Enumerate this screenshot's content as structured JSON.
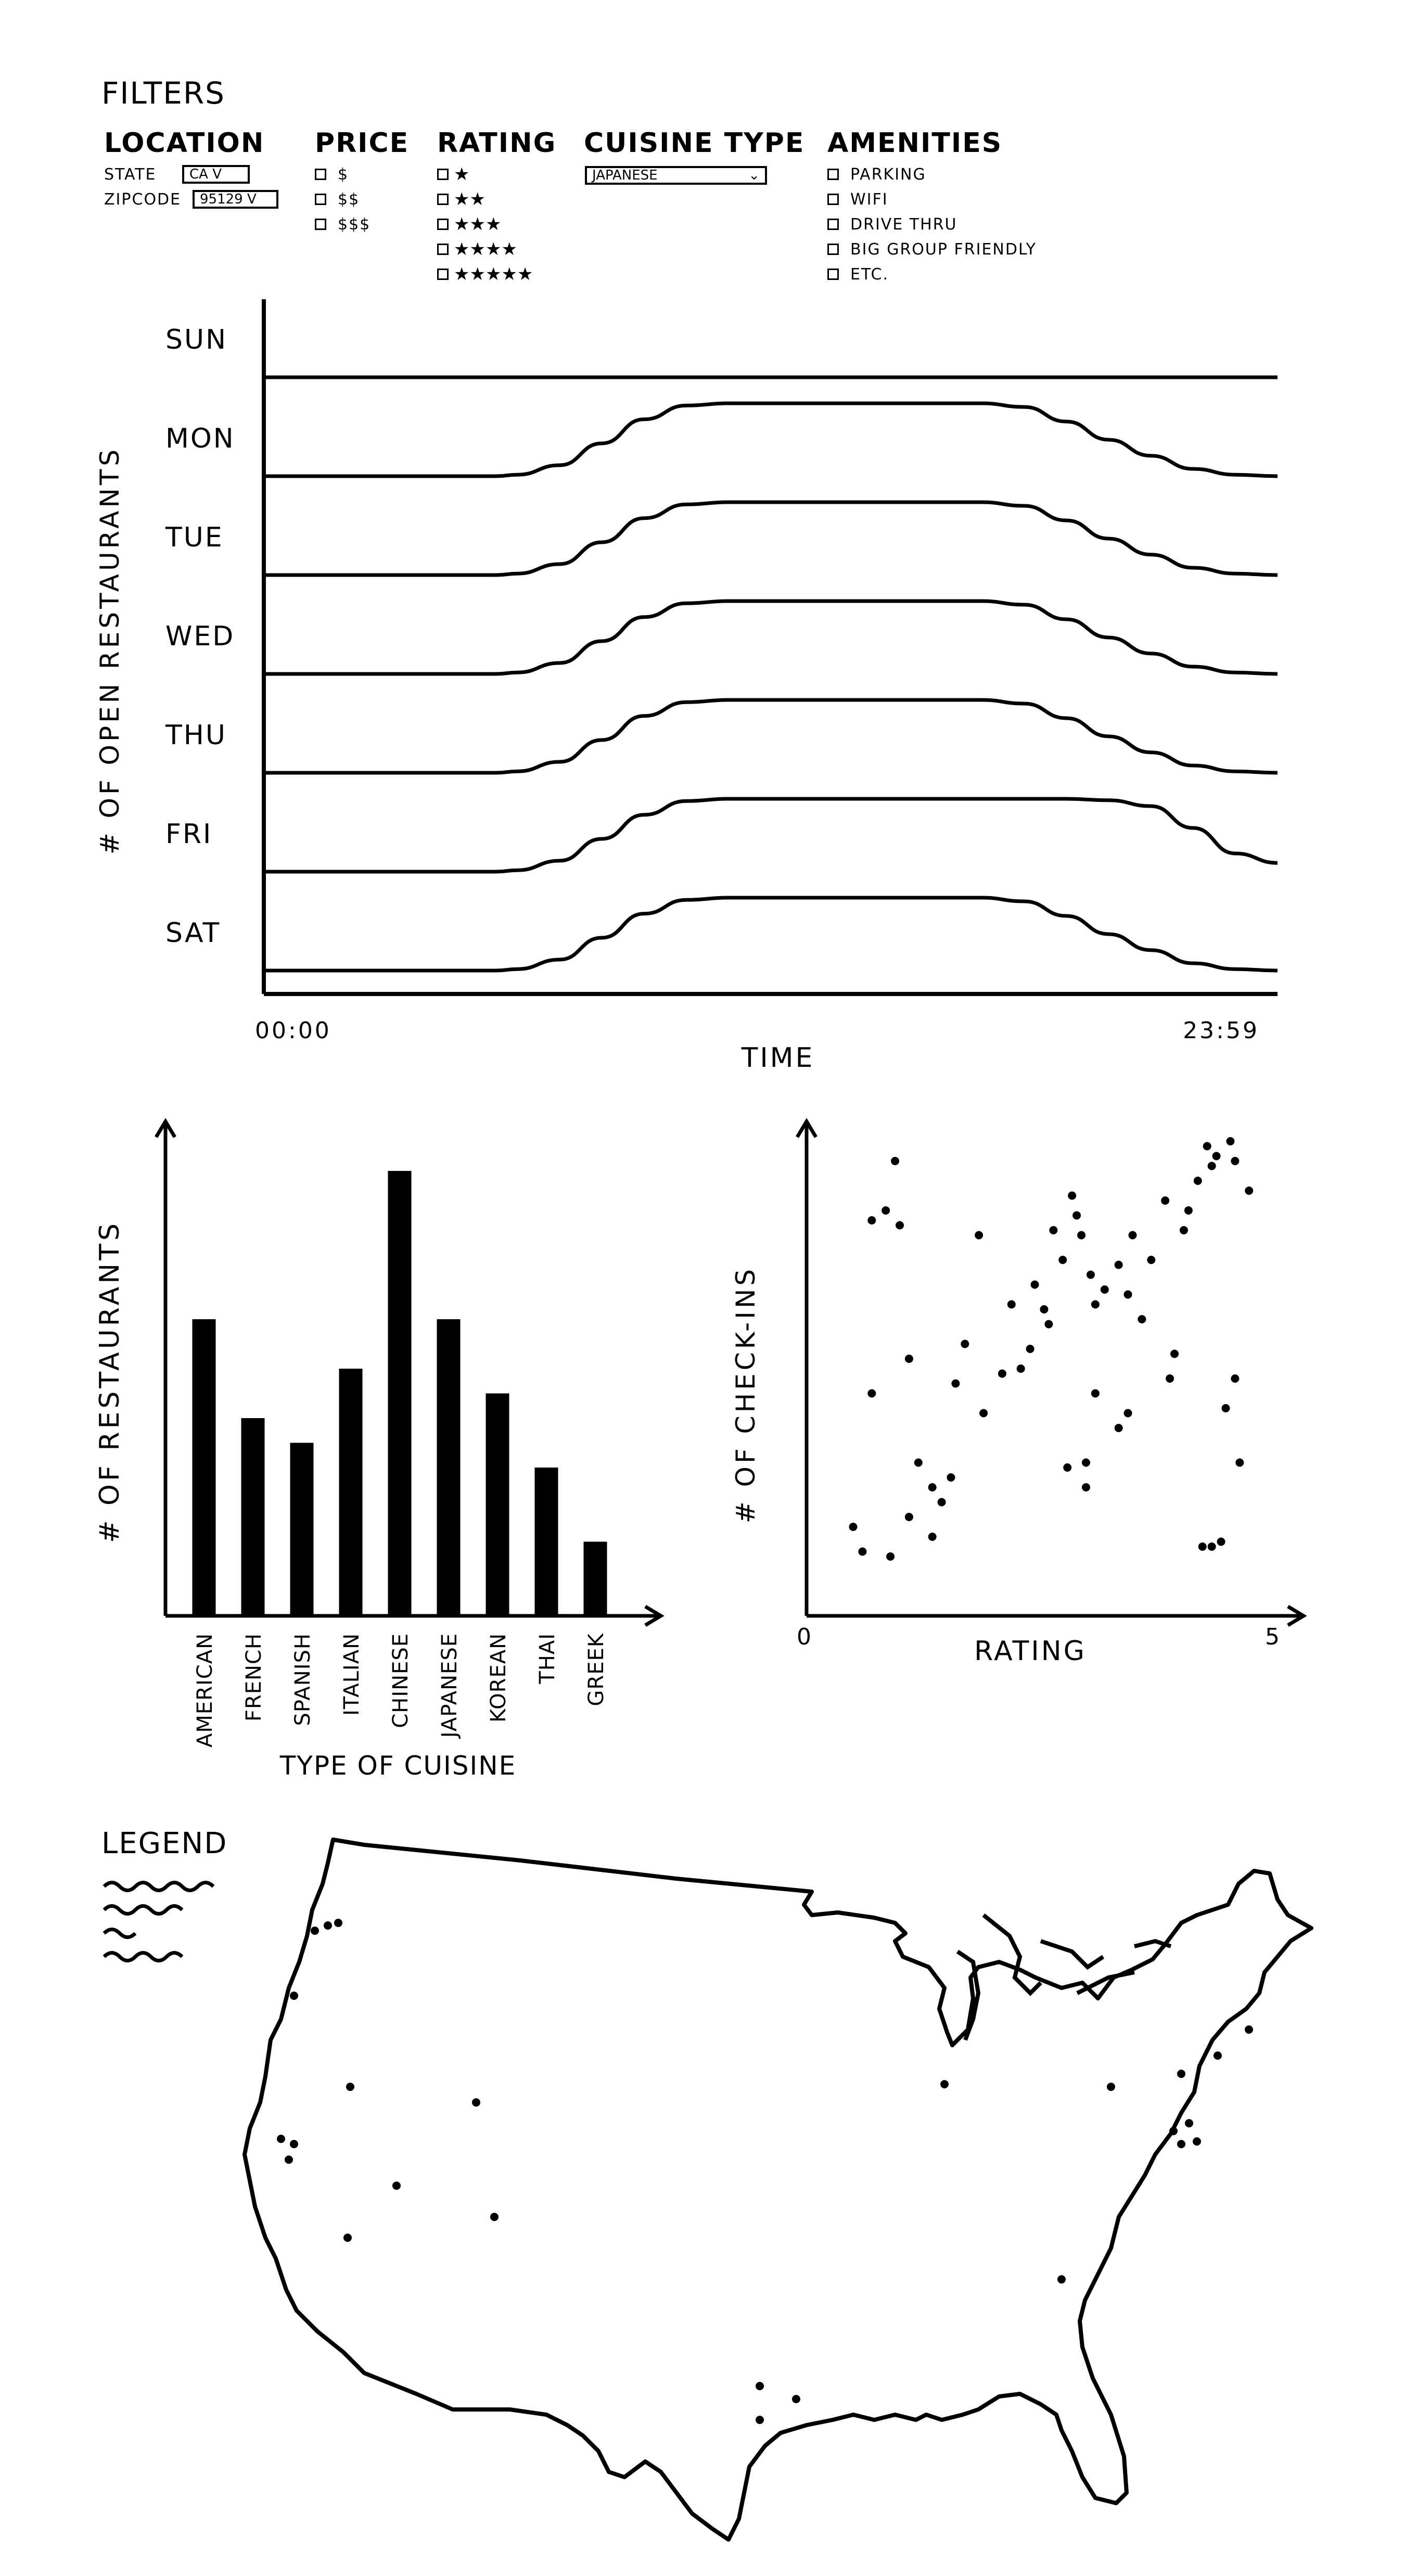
{
  "filters": {
    "title": "FILTERS",
    "location": {
      "heading": "LOCATION",
      "state_label": "STATE",
      "state_value": "CA V",
      "zipcode_label": "ZIPCODE",
      "zipcode_value": "95129 V"
    },
    "price": {
      "heading": "PRICE",
      "options": [
        "$",
        "$$",
        "$$$"
      ]
    },
    "rating": {
      "heading": "RATING",
      "options": [
        "★",
        "★★",
        "★★★",
        "★★★★",
        "★★★★★"
      ]
    },
    "cuisine": {
      "heading": "CUISINE TYPE",
      "value": "JAPANESE"
    },
    "amenities": {
      "heading": "AMENITIES",
      "options": [
        "PARKING",
        "WIFI",
        "DRIVE THRU",
        "BIG GROUP FRIENDLY",
        "ETC."
      ]
    }
  },
  "chart_data": [
    {
      "type": "line",
      "ylabel": "# OF OPEN RESTAURANTS",
      "xlabel": "TIME",
      "x_tick_labels": [
        "00:00",
        "23:59"
      ],
      "rows": [
        "SUN",
        "MON",
        "TUE",
        "WED",
        "THU",
        "FRI",
        "SAT"
      ],
      "x": [
        0,
        2,
        4,
        5.5,
        6,
        7,
        8,
        9,
        10,
        11,
        12,
        13,
        14,
        15,
        16,
        17,
        18,
        19,
        20,
        21,
        22,
        23,
        24
      ],
      "series": [
        {
          "name": "SUN",
          "values": [
            0,
            0,
            0,
            0,
            0,
            0,
            0,
            0,
            0,
            0,
            0,
            0,
            0,
            0,
            0,
            0,
            0,
            0,
            0,
            0,
            0,
            0,
            0
          ]
        },
        {
          "name": "MON",
          "values": [
            0,
            0,
            0,
            0,
            0.02,
            0.15,
            0.45,
            0.78,
            0.97,
            1,
            1,
            1,
            1,
            1,
            1,
            1,
            0.95,
            0.75,
            0.5,
            0.28,
            0.1,
            0.02,
            0
          ]
        },
        {
          "name": "TUE",
          "values": [
            0,
            0,
            0,
            0,
            0.02,
            0.15,
            0.45,
            0.78,
            0.97,
            1,
            1,
            1,
            1,
            1,
            1,
            1,
            0.95,
            0.75,
            0.5,
            0.28,
            0.1,
            0.02,
            0
          ]
        },
        {
          "name": "WED",
          "values": [
            0,
            0,
            0,
            0,
            0.02,
            0.15,
            0.45,
            0.78,
            0.97,
            1,
            1,
            1,
            1,
            1,
            1,
            1,
            0.95,
            0.75,
            0.5,
            0.28,
            0.1,
            0.02,
            0
          ]
        },
        {
          "name": "THU",
          "values": [
            0,
            0,
            0,
            0,
            0.02,
            0.15,
            0.45,
            0.78,
            0.97,
            1,
            1,
            1,
            1,
            1,
            1,
            1,
            0.95,
            0.75,
            0.5,
            0.28,
            0.1,
            0.02,
            0
          ]
        },
        {
          "name": "FRI",
          "values": [
            0,
            0,
            0,
            0,
            0.02,
            0.15,
            0.45,
            0.78,
            0.97,
            1,
            1,
            1,
            1,
            1,
            1,
            1,
            1,
            1,
            0.98,
            0.9,
            0.6,
            0.25,
            0.12
          ]
        },
        {
          "name": "SAT",
          "values": [
            0,
            0,
            0,
            0,
            0.02,
            0.15,
            0.45,
            0.78,
            0.97,
            1,
            1,
            1,
            1,
            1,
            1,
            1,
            0.95,
            0.75,
            0.5,
            0.28,
            0.1,
            0.02,
            0
          ]
        }
      ]
    },
    {
      "type": "bar",
      "ylabel": "# OF RESTAURANTS",
      "xlabel": "TYPE OF CUISINE",
      "categories": [
        "AMERICAN",
        "FRENCH",
        "SPANISH",
        "ITALIAN",
        "CHINESE",
        "JAPANESE",
        "KOREAN",
        "THAI",
        "GREEK"
      ],
      "values": [
        60,
        40,
        35,
        50,
        90,
        60,
        45,
        30,
        15
      ],
      "ylim": [
        0,
        100
      ]
    },
    {
      "type": "scatter",
      "ylabel": "# OF CHECK-INS",
      "xlabel": "RATING",
      "x_tick_labels": [
        "0",
        "5"
      ],
      "xlim": [
        0,
        5
      ],
      "ylim": [
        0,
        100
      ],
      "points": [
        [
          0.5,
          18
        ],
        [
          0.7,
          80
        ],
        [
          0.85,
          82
        ],
        [
          0.95,
          92
        ],
        [
          1.0,
          79
        ],
        [
          0.7,
          45
        ],
        [
          1.1,
          52
        ],
        [
          0.6,
          13
        ],
        [
          0.9,
          12
        ],
        [
          1.1,
          20
        ],
        [
          1.2,
          31
        ],
        [
          1.35,
          26
        ],
        [
          1.45,
          23
        ],
        [
          1.55,
          28
        ],
        [
          1.35,
          16
        ],
        [
          1.6,
          47
        ],
        [
          1.7,
          55
        ],
        [
          1.85,
          77
        ],
        [
          1.9,
          41
        ],
        [
          2.1,
          49
        ],
        [
          2.3,
          50
        ],
        [
          2.4,
          54
        ],
        [
          2.2,
          63
        ],
        [
          2.45,
          67
        ],
        [
          2.55,
          62
        ],
        [
          2.6,
          59
        ],
        [
          2.65,
          78
        ],
        [
          2.75,
          72
        ],
        [
          2.85,
          85
        ],
        [
          2.9,
          81
        ],
        [
          2.95,
          77
        ],
        [
          3.05,
          69
        ],
        [
          3.1,
          63
        ],
        [
          3.2,
          66
        ],
        [
          3.35,
          71
        ],
        [
          3.45,
          65
        ],
        [
          3.5,
          77
        ],
        [
          3.6,
          60
        ],
        [
          3.7,
          72
        ],
        [
          3.85,
          84
        ],
        [
          4.05,
          78
        ],
        [
          4.1,
          82
        ],
        [
          4.2,
          88
        ],
        [
          4.3,
          95
        ],
        [
          4.35,
          91
        ],
        [
          4.4,
          93
        ],
        [
          4.55,
          96
        ],
        [
          4.6,
          92
        ],
        [
          4.75,
          86
        ],
        [
          2.8,
          30
        ],
        [
          3.0,
          26
        ],
        [
          3.0,
          31
        ],
        [
          3.1,
          45
        ],
        [
          3.35,
          38
        ],
        [
          3.45,
          41
        ],
        [
          3.9,
          48
        ],
        [
          3.95,
          53
        ],
        [
          4.25,
          14
        ],
        [
          4.35,
          14
        ],
        [
          4.45,
          15
        ],
        [
          4.5,
          42
        ],
        [
          4.6,
          48
        ],
        [
          4.65,
          31
        ]
      ]
    }
  ],
  "map": {
    "legend_title": "LEGEND"
  }
}
